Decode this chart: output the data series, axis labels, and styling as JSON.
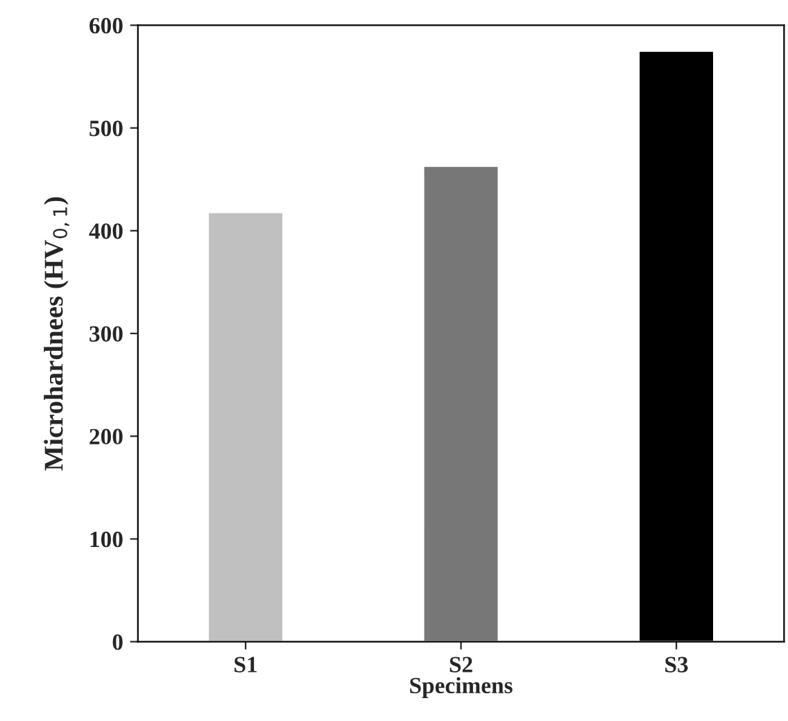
{
  "chart_data": {
    "type": "bar",
    "xlabel": "Specimens",
    "ylabel": "Microhardnees (HV$_{0,1}$)",
    "categories": [
      "S1",
      "S2",
      "S3"
    ],
    "values": [
      418,
      463,
      575
    ],
    "colors": [
      "#c0c0c0",
      "#777777",
      "#000000"
    ],
    "ylim": [
      0,
      600
    ],
    "yticks": [
      0,
      100,
      200,
      300,
      400,
      500,
      600
    ],
    "grid": false,
    "legend": false
  }
}
